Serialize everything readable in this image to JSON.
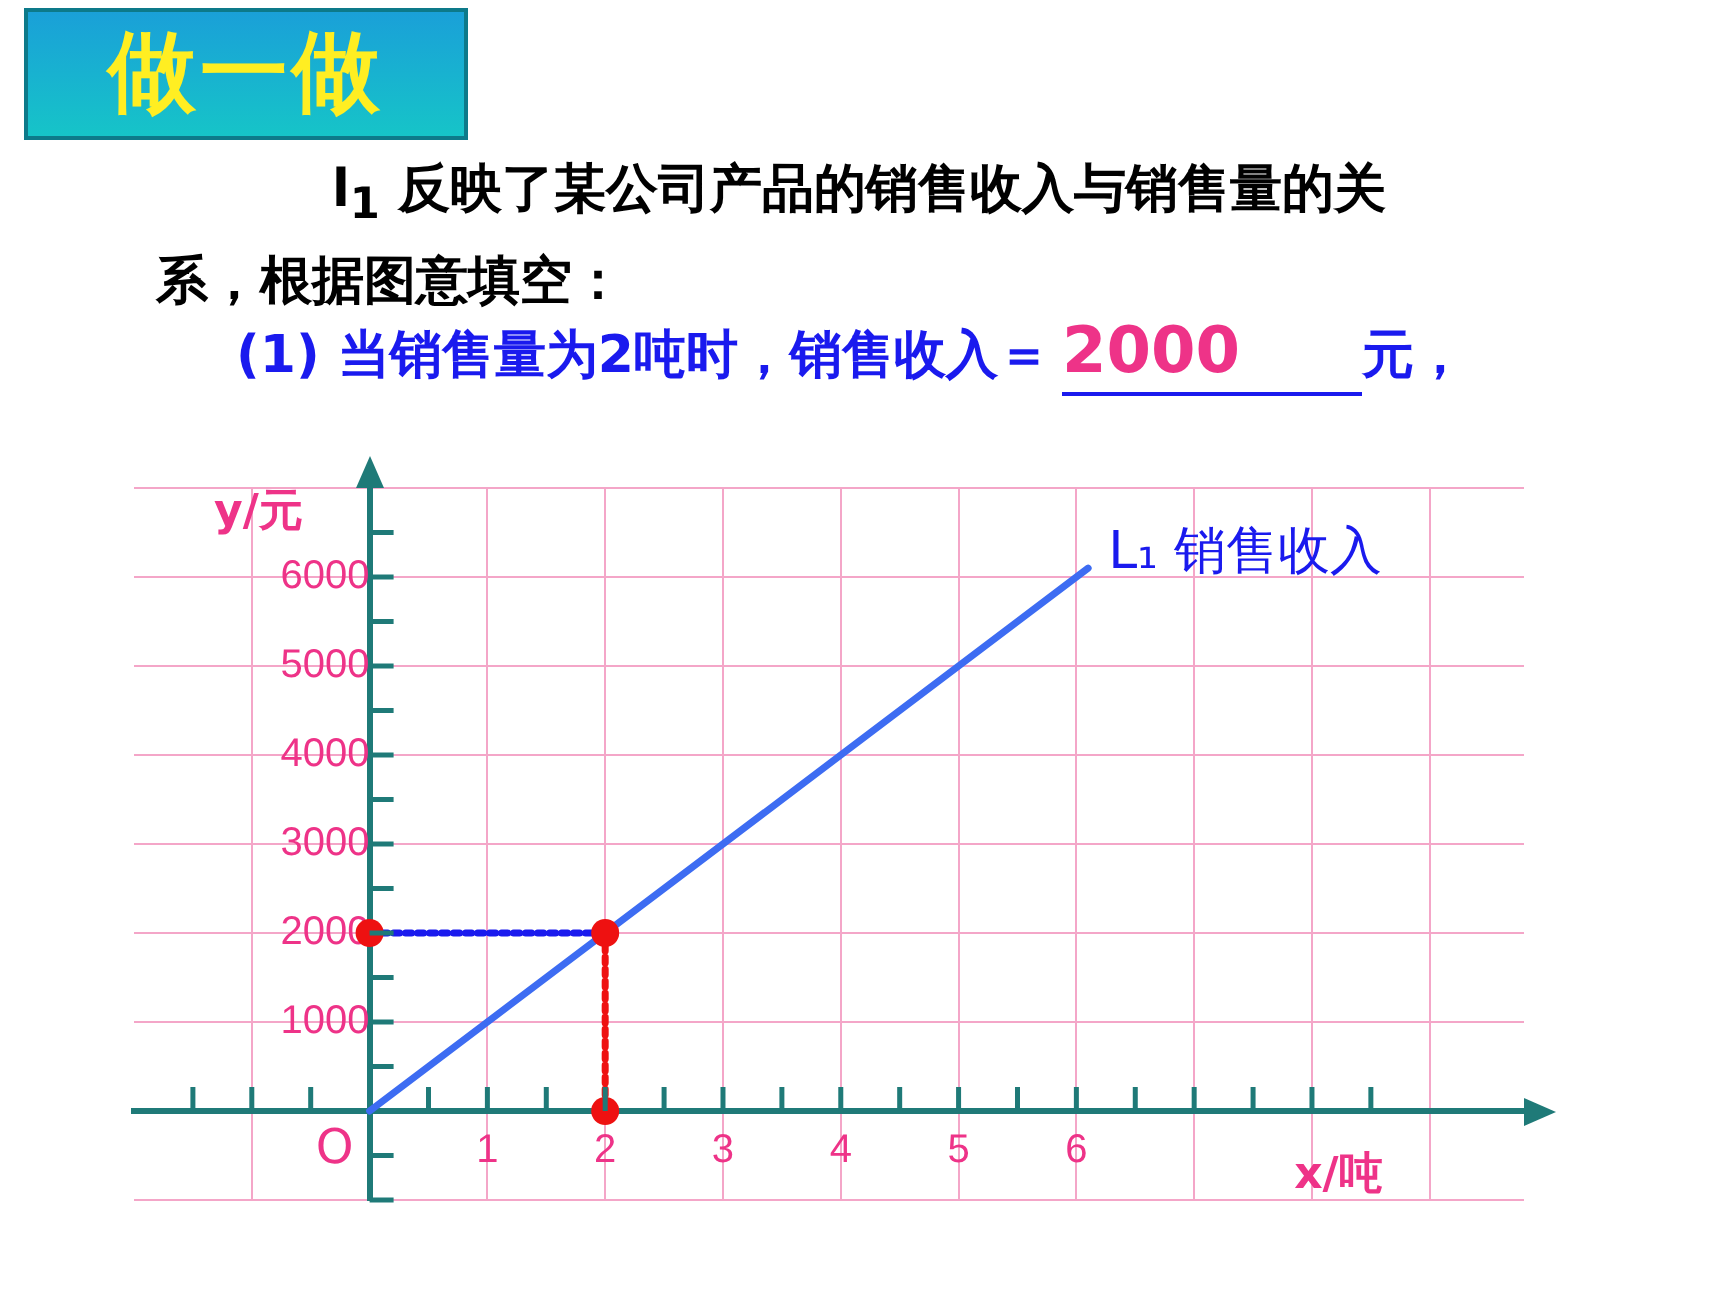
{
  "chart_data": {
    "type": "line",
    "title": "做一做",
    "subtitle": "l$_{1}$ 反映了某公司产品的销售收入与销售量的关系，根据图意填空：",
    "xlabel": "x/吨",
    "ylabel": "y/元",
    "annotations": [
      "(1) 当销售量为2吨时，销售收入＝",
      "2000",
      "元，",
      {
        "text": "O",
        "x": 0,
        "y": 0
      }
    ],
    "xlim": [
      -2,
      9.8
    ],
    "ylim": [
      -1000,
      7000
    ],
    "xticks": [
      {
        "value": -1,
        "label": null
      },
      {
        "value": 0,
        "label": null
      },
      1,
      2,
      3,
      4,
      5,
      6,
      {
        "value": 7,
        "label": null
      },
      {
        "value": 8,
        "label": null
      },
      {
        "value": 9,
        "label": null
      }
    ],
    "yticks": [
      {
        "value": -1000,
        "label": null
      },
      {
        "value": 0,
        "label": null
      },
      1000,
      2000,
      3000,
      4000,
      5000,
      6000,
      {
        "value": 7000,
        "label": null
      }
    ],
    "grid": true,
    "legend": false,
    "series": [
      {
        "name": "L₁ 销售收入",
        "color": "#3d6cf2",
        "x": [
          0,
          6.1
        ],
        "values": [
          0,
          6100
        ],
        "marker": "none",
        "line_style": "solid"
      },
      {
        "type": "line",
        "color": "#1a1aee",
        "x": [
          0,
          2
        ],
        "values": [
          2000,
          2000
        ],
        "marker": "none",
        "line_style": "dotted"
      },
      {
        "type": "line",
        "color": "#ee1111",
        "x": [
          2,
          2
        ],
        "values": [
          2000,
          0
        ],
        "marker": "none",
        "line_style": "dotted"
      },
      {
        "type": "scatter",
        "color": "#ee1111",
        "x": [
          0,
          2,
          2
        ],
        "values": [
          2000,
          2000,
          0
        ],
        "marker": "circle"
      }
    ]
  }
}
